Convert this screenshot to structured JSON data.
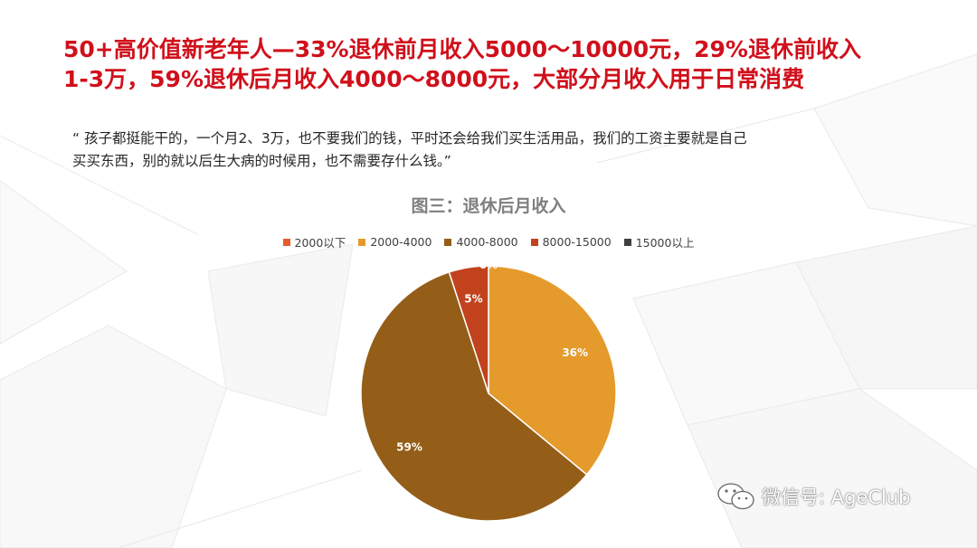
{
  "headline": {
    "line1": "50+高价值新老年人—33%退休前月收入5000～10000元，29%退休前收入",
    "line2": "1-3万，59%退休后月收入4000～8000元，大部分月收入用于日常消费"
  },
  "quote": {
    "line1": "“ 孩子都挺能干的，一个月2、3万，也不要我们的钱，平时还会给我们买生活用品，我们的工资主要就是自己",
    "line2": "买买东西，别的就以后生大病的时候用，也不需要存什么钱。”"
  },
  "watermark": {
    "text": "微信号: AgeClub",
    "icon": "wechat-icon"
  },
  "chart_data": {
    "type": "pie",
    "title": "图三：退休后月收入",
    "legend_position": "top",
    "slices": [
      {
        "label": "2000以下",
        "value": 0,
        "data_label": "",
        "color": "#e55b2a"
      },
      {
        "label": "2000-4000",
        "value": 36,
        "data_label": "36%",
        "color": "#e59a2c"
      },
      {
        "label": "4000-8000",
        "value": 59,
        "data_label": "59%",
        "color": "#945e18"
      },
      {
        "label": "8000-15000",
        "value": 5,
        "data_label": "5%",
        "color": "#c1421c"
      },
      {
        "label": "15000以上",
        "value": 0,
        "data_label": "0%",
        "color": "#404040"
      }
    ]
  }
}
